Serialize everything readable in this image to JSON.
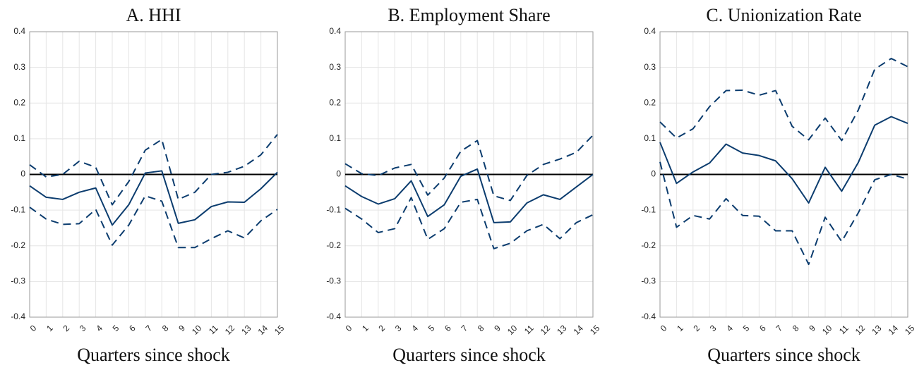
{
  "chart_data": [
    {
      "type": "line",
      "title": "A. HHI",
      "xlabel": "Quarters since shock",
      "x": [
        0,
        1,
        2,
        3,
        4,
        5,
        6,
        7,
        8,
        9,
        10,
        11,
        12,
        13,
        14,
        15
      ],
      "xlim": [
        0,
        15
      ],
      "xticks": [
        0,
        1,
        2,
        3,
        4,
        5,
        6,
        7,
        8,
        9,
        10,
        11,
        12,
        13,
        14,
        15
      ],
      "ylim": [
        -0.4,
        0.4
      ],
      "yticks": [
        -0.4,
        -0.3,
        -0.2,
        -0.1,
        0,
        0.1,
        0.2,
        0.3,
        0.4
      ],
      "grid": true,
      "reference_line": 0,
      "series": [
        {
          "color": "#0b3c6e",
          "dash": false,
          "values": [
            -0.032,
            -0.064,
            -0.07,
            -0.05,
            -0.038,
            -0.142,
            -0.085,
            0.004,
            0.01,
            -0.137,
            -0.127,
            -0.09,
            -0.077,
            -0.078,
            -0.04,
            0.006
          ]
        },
        {
          "color": "#0b3c6e",
          "dash": true,
          "values": [
            0.027,
            -0.007,
            0.0,
            0.037,
            0.02,
            -0.085,
            -0.02,
            0.068,
            0.098,
            -0.07,
            -0.05,
            0.0,
            0.006,
            0.023,
            0.055,
            0.112
          ]
        },
        {
          "color": "#0b3c6e",
          "dash": true,
          "values": [
            -0.092,
            -0.125,
            -0.14,
            -0.138,
            -0.098,
            -0.198,
            -0.142,
            -0.06,
            -0.075,
            -0.205,
            -0.205,
            -0.18,
            -0.158,
            -0.178,
            -0.13,
            -0.098
          ]
        }
      ]
    },
    {
      "type": "line",
      "title": "B. Employment Share",
      "xlabel": "Quarters since shock",
      "x": [
        0,
        1,
        2,
        3,
        4,
        5,
        6,
        7,
        8,
        9,
        10,
        11,
        12,
        13,
        14,
        15
      ],
      "xlim": [
        0,
        15
      ],
      "xticks": [
        0,
        1,
        2,
        3,
        4,
        5,
        6,
        7,
        8,
        9,
        10,
        11,
        12,
        13,
        14,
        15
      ],
      "ylim": [
        -0.4,
        0.4
      ],
      "yticks": [
        -0.4,
        -0.3,
        -0.2,
        -0.1,
        0,
        0.1,
        0.2,
        0.3,
        0.4
      ],
      "grid": true,
      "reference_line": 0,
      "series": [
        {
          "color": "#0b3c6e",
          "dash": false,
          "values": [
            -0.032,
            -0.062,
            -0.083,
            -0.068,
            -0.018,
            -0.118,
            -0.085,
            -0.005,
            0.015,
            -0.135,
            -0.133,
            -0.08,
            -0.057,
            -0.07,
            -0.035,
            0.0
          ]
        },
        {
          "color": "#0b3c6e",
          "dash": true,
          "values": [
            0.03,
            0.002,
            -0.003,
            0.018,
            0.028,
            -0.058,
            -0.01,
            0.065,
            0.095,
            -0.06,
            -0.073,
            -0.003,
            0.028,
            0.043,
            0.062,
            0.11
          ]
        },
        {
          "color": "#0b3c6e",
          "dash": true,
          "values": [
            -0.095,
            -0.125,
            -0.163,
            -0.152,
            -0.065,
            -0.182,
            -0.152,
            -0.078,
            -0.07,
            -0.208,
            -0.193,
            -0.158,
            -0.14,
            -0.18,
            -0.135,
            -0.113
          ]
        }
      ]
    },
    {
      "type": "line",
      "title": "C. Unionization Rate",
      "xlabel": "Quarters since shock",
      "x": [
        0,
        1,
        2,
        3,
        4,
        5,
        6,
        7,
        8,
        9,
        10,
        11,
        12,
        13,
        14,
        15
      ],
      "xlim": [
        0,
        15
      ],
      "xticks": [
        0,
        1,
        2,
        3,
        4,
        5,
        6,
        7,
        8,
        9,
        10,
        11,
        12,
        13,
        14,
        15
      ],
      "ylim": [
        -0.4,
        0.4
      ],
      "yticks": [
        -0.4,
        -0.3,
        -0.2,
        -0.1,
        0,
        0.1,
        0.2,
        0.3,
        0.4
      ],
      "grid": true,
      "reference_line": 0,
      "series": [
        {
          "color": "#0b3c6e",
          "dash": false,
          "values": [
            0.09,
            -0.025,
            0.007,
            0.032,
            0.085,
            0.06,
            0.053,
            0.038,
            -0.012,
            -0.08,
            0.02,
            -0.047,
            0.033,
            0.138,
            0.162,
            0.143
          ]
        },
        {
          "color": "#0b3c6e",
          "dash": true,
          "values": [
            0.147,
            0.102,
            0.128,
            0.19,
            0.235,
            0.236,
            0.222,
            0.235,
            0.135,
            0.097,
            0.158,
            0.095,
            0.18,
            0.295,
            0.325,
            0.302
          ]
        },
        {
          "color": "#0b3c6e",
          "dash": true,
          "values": [
            0.035,
            -0.148,
            -0.115,
            -0.125,
            -0.068,
            -0.115,
            -0.117,
            -0.158,
            -0.158,
            -0.252,
            -0.12,
            -0.188,
            -0.108,
            -0.015,
            0.0,
            -0.013
          ]
        }
      ]
    }
  ]
}
